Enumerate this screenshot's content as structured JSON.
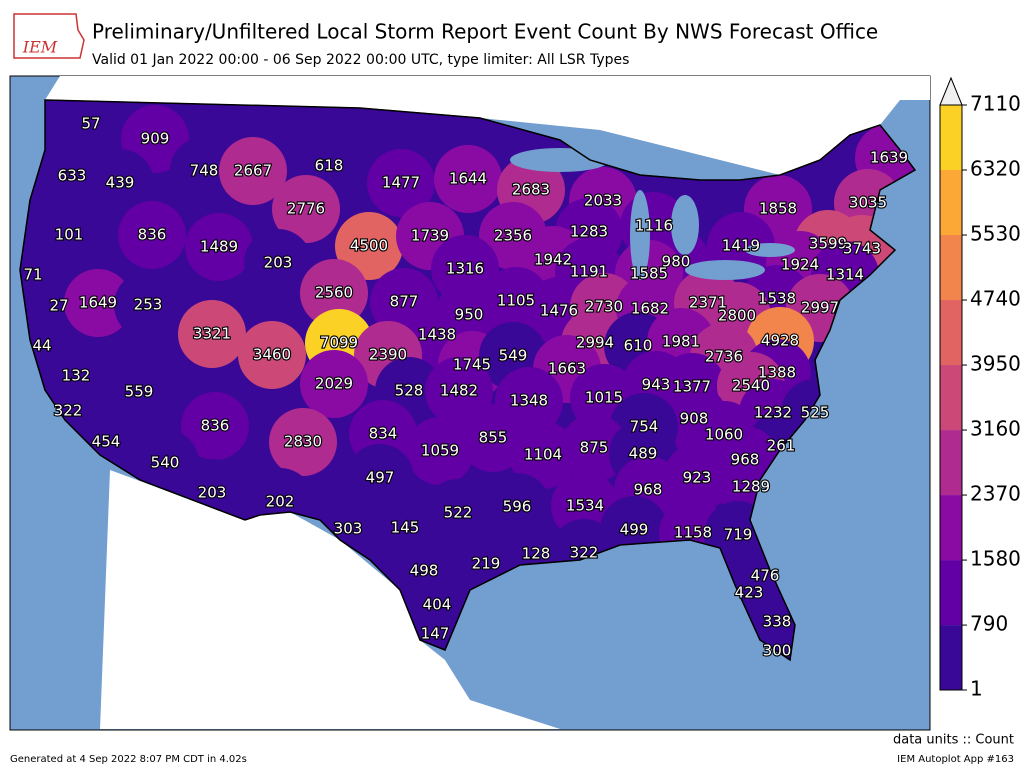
{
  "header": {
    "logo": "IEM",
    "title": "Preliminary/Unfiltered Local Storm Report Event Count By NWS Forecast Office",
    "subtitle": "Valid 01 Jan 2022 00:00 - 06 Sep 2022 00:00 UTC, type limiter: All LSR Types"
  },
  "colorbar": {
    "ticks": [
      1,
      790,
      1580,
      2370,
      3160,
      3950,
      4740,
      5530,
      6320,
      7110
    ],
    "colors": [
      "#3a0896",
      "#6200a6",
      "#8a0ba4",
      "#b02b90",
      "#cc4877",
      "#e26462",
      "#f1854b",
      "#fba837",
      "#fbd126"
    ],
    "units": "data units :: Count"
  },
  "map": {
    "labels": [
      57,
      909,
      633,
      439,
      748,
      2667,
      618,
      1477,
      1644,
      2683,
      2033,
      1639,
      1858,
      3035,
      2776,
      1116,
      101,
      836,
      1489,
      203,
      4500,
      1739,
      2356,
      1283,
      1419,
      3599,
      3743,
      1942,
      980,
      1316,
      1191,
      1585,
      1924,
      1314,
      71,
      27,
      1649,
      253,
      2560,
      877,
      1105,
      1476,
      2730,
      1682,
      2371,
      1538,
      2997,
      950,
      2800,
      3321,
      7099,
      1438,
      2994,
      610,
      1981,
      4928,
      44,
      3460,
      2390,
      1745,
      549,
      2736,
      1663,
      1388,
      132,
      2029,
      528,
      1482,
      943,
      1377,
      2540,
      559,
      1015,
      1348,
      322,
      1232,
      525,
      908,
      836,
      754,
      1060,
      834,
      855,
      2830,
      454,
      261,
      1059,
      875,
      489,
      1104,
      968,
      540,
      923,
      497,
      968,
      1289,
      203,
      202,
      596,
      1534,
      522,
      303,
      145,
      499,
      1158,
      719,
      322,
      128,
      219,
      498,
      476,
      423,
      404,
      338,
      147,
      300
    ]
  },
  "footer": {
    "generated": "Generated at 4 Sep 2022 8:07 PM CDT in 4.02s",
    "app": "IEM Autoplot App #163"
  }
}
